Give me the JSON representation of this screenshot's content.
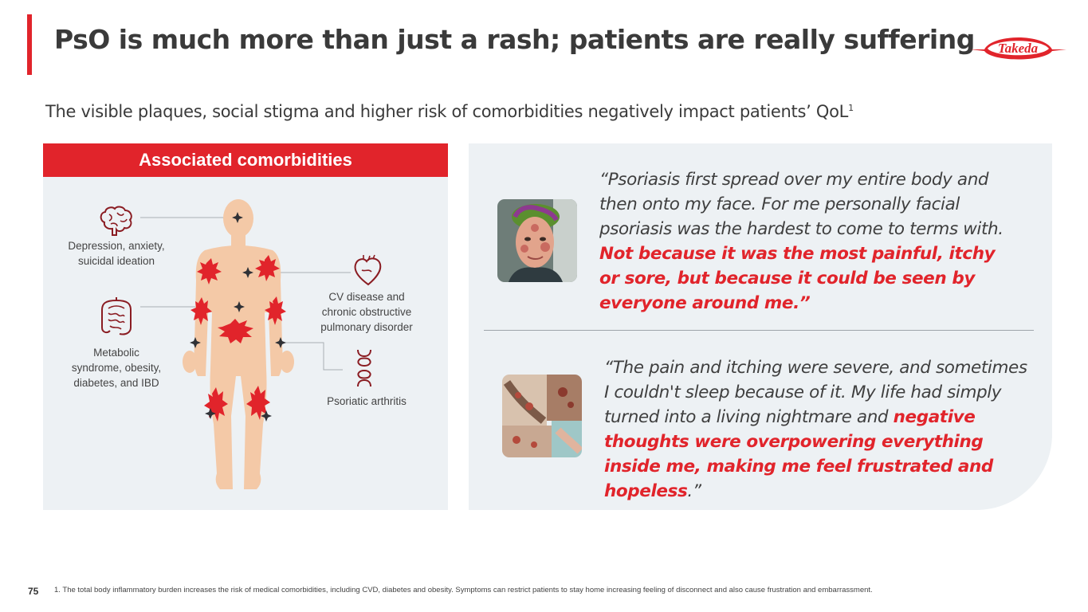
{
  "title": "PsO is much more than just a rash; patients are really suffering",
  "subtitle": {
    "text": "The visible plaques, social stigma and higher risk of comorbidities negatively impact patients’ QoL",
    "sup": "1"
  },
  "logo": {
    "text": "Takeda",
    "color": "#e1242b"
  },
  "comorbidities": {
    "header": "Associated comorbidities",
    "depression": [
      "Depression, anxiety,",
      "suicidal ideation"
    ],
    "metabolic": [
      "Metabolic",
      "syndrome, obesity,",
      "diabetes, and IBD"
    ],
    "cv": [
      "CV disease and",
      "chronic obstructive",
      "pulmonary disorder"
    ],
    "arthritis": [
      "Psoriatic arthritis"
    ]
  },
  "quotes": [
    {
      "plain": "“Psoriasis first spread over my entire body and then onto my face. For me personally facial psoriasis was the hardest to come to terms with.",
      "highlight": "Not because it was the most painful, itchy or sore, but because it could be seen by everyone around me.”",
      "after": ""
    },
    {
      "plain": "“The pain and itching were severe, and sometimes I couldn't sleep because of it. My life had simply turned into a living nightmare and",
      "highlight": "negative thoughts were overpowering everything inside me, making me feel frustrated and hopeless",
      "after": ".”"
    }
  ],
  "page_number": "75",
  "footnote": "1. The total body inflammatory burden increases the risk of medical comorbidities, including CVD, diabetes and obesity. Symptoms can restrict patients to stay home increasing feeling of disconnect and also cause frustration and embarrassment.",
  "colors": {
    "accent": "#e1242b",
    "panel": "#edf1f4",
    "body": "#f4c9a7"
  }
}
